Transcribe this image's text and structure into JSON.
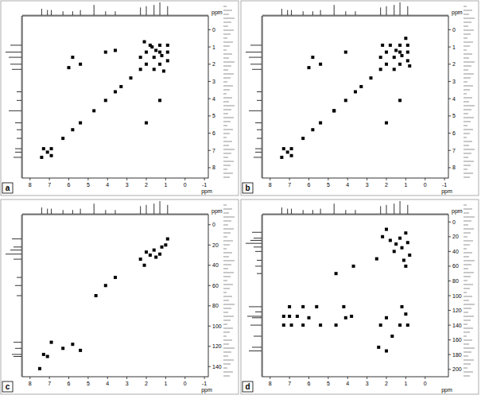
{
  "chart_data": [
    {
      "type": "scatter",
      "label": "a",
      "color": "#000000",
      "marker": "square",
      "x_label": "ppm",
      "y_label": "ppm",
      "xlim": [
        8.4,
        -1.2
      ],
      "xticks": [
        8,
        7,
        6,
        5,
        4,
        3,
        2,
        1,
        0,
        -1
      ],
      "ylim": [
        -0.8,
        8.6
      ],
      "yticks": [
        0,
        1,
        2,
        3,
        4,
        5,
        6,
        7,
        8
      ],
      "x": [
        7.4,
        7.1,
        6.9,
        6.3,
        5.8,
        5.4,
        4.7,
        4.1,
        3.6,
        3.3,
        2.8,
        2.3,
        2.0,
        1.6,
        1.3,
        0.9,
        1.2,
        1.5,
        2.0,
        1.3,
        0.9,
        1.3,
        2.3,
        1.6,
        1.8,
        0.9,
        5.4,
        2.0,
        6.0,
        5.8,
        7.3,
        6.9,
        4.1,
        1.3,
        3.6,
        1.1,
        1.7,
        2.1
      ],
      "values": [
        7.4,
        7.1,
        6.9,
        6.3,
        5.8,
        5.4,
        4.7,
        4.1,
        3.6,
        3.3,
        2.8,
        2.3,
        2.0,
        1.6,
        1.3,
        0.9,
        1.5,
        1.2,
        1.3,
        2.0,
        1.3,
        0.9,
        1.6,
        2.3,
        0.9,
        1.8,
        2.0,
        5.4,
        2.2,
        1.6,
        6.9,
        7.3,
        1.3,
        4.1,
        1.2,
        2.4,
        1.0,
        0.7
      ],
      "x_projection": {
        "positions": [
          7.4,
          7.1,
          6.9,
          6.3,
          5.8,
          5.4,
          4.7,
          4.1,
          3.6,
          2.3,
          2.0,
          1.6,
          1.3,
          0.9
        ],
        "heights": [
          0.5,
          0.4,
          0.4,
          0.3,
          0.3,
          0.4,
          0.8,
          0.3,
          0.3,
          0.6,
          0.7,
          0.8,
          1.0,
          0.7
        ]
      },
      "y_projection": {
        "positions": [
          7.4,
          7.1,
          6.9,
          6.3,
          5.8,
          5.4,
          4.7,
          4.1,
          3.6,
          2.3,
          2.0,
          1.6,
          1.3,
          0.9
        ],
        "heights": [
          0.5,
          0.4,
          0.4,
          0.3,
          0.3,
          0.4,
          0.8,
          0.3,
          0.3,
          0.6,
          0.7,
          0.8,
          1.0,
          0.7
        ]
      }
    },
    {
      "type": "scatter",
      "label": "b",
      "color": "#000000",
      "marker": "square",
      "x_label": "ppm",
      "y_label": "ppm",
      "xlim": [
        8.4,
        -1.2
      ],
      "xticks": [
        8,
        7,
        6,
        5,
        4,
        3,
        2,
        1,
        0,
        -1
      ],
      "ylim": [
        -0.8,
        8.6
      ],
      "yticks": [
        0,
        1,
        2,
        3,
        4,
        5,
        6,
        7,
        8
      ],
      "x": [
        7.4,
        7.1,
        6.9,
        6.3,
        5.8,
        5.4,
        4.7,
        4.1,
        3.6,
        3.3,
        2.8,
        2.3,
        2.0,
        1.6,
        1.3,
        0.9,
        1.2,
        1.5,
        2.0,
        1.3,
        0.9,
        1.3,
        2.3,
        1.6,
        1.8,
        0.9,
        5.4,
        2.0,
        6.0,
        5.8,
        7.3,
        6.9,
        4.1,
        1.3,
        4.7,
        2.2,
        0.8,
        1.0
      ],
      "values": [
        7.4,
        7.1,
        6.9,
        6.3,
        5.8,
        5.4,
        4.7,
        4.1,
        3.6,
        3.3,
        2.8,
        2.3,
        2.0,
        1.6,
        1.3,
        0.9,
        1.5,
        1.2,
        1.3,
        2.0,
        1.3,
        0.9,
        1.6,
        2.3,
        0.9,
        1.8,
        2.0,
        5.4,
        2.2,
        1.6,
        6.9,
        7.3,
        1.3,
        4.1,
        4.7,
        0.9,
        2.1,
        0.5
      ],
      "x_projection": {
        "positions": [
          7.4,
          7.1,
          6.9,
          6.3,
          5.8,
          5.4,
          4.7,
          4.1,
          3.6,
          2.3,
          2.0,
          1.6,
          1.3,
          0.9
        ],
        "heights": [
          0.5,
          0.4,
          0.4,
          0.3,
          0.3,
          0.4,
          0.8,
          0.3,
          0.3,
          0.6,
          0.7,
          0.8,
          1.0,
          0.7
        ]
      },
      "y_projection": {
        "positions": [
          7.4,
          7.1,
          6.9,
          6.3,
          5.8,
          5.4,
          4.7,
          4.1,
          3.6,
          2.3,
          2.0,
          1.6,
          1.3,
          0.9
        ],
        "heights": [
          0.5,
          0.4,
          0.4,
          0.3,
          0.3,
          0.4,
          0.8,
          0.3,
          0.3,
          0.6,
          0.7,
          0.8,
          1.0,
          0.7
        ]
      }
    },
    {
      "type": "scatter",
      "label": "c",
      "color": "#000000",
      "marker": "square",
      "x_label": "ppm",
      "y_label": "ppm",
      "xlim": [
        8.4,
        -1.2
      ],
      "xticks": [
        8,
        7,
        6,
        5,
        4,
        3,
        2,
        1,
        0,
        -1
      ],
      "ylim": [
        -10,
        150
      ],
      "yticks": [
        0,
        20,
        40,
        60,
        80,
        100,
        120,
        140
      ],
      "x": [
        7.5,
        7.3,
        7.1,
        6.9,
        6.3,
        5.8,
        5.4,
        4.6,
        4.1,
        3.6,
        2.3,
        2.0,
        1.6,
        1.3,
        1.2,
        0.9,
        1.5,
        2.1,
        1.0,
        1.8
      ],
      "values": [
        142,
        128,
        130,
        116,
        122,
        118,
        124,
        70,
        60,
        52,
        34,
        27,
        25,
        29,
        22,
        14,
        32,
        40,
        20,
        30
      ],
      "x_projection": {
        "positions": [
          7.4,
          7.1,
          6.9,
          6.3,
          5.8,
          5.4,
          4.7,
          4.1,
          3.6,
          2.3,
          2.0,
          1.6,
          1.3,
          0.9
        ],
        "heights": [
          0.5,
          0.4,
          0.4,
          0.3,
          0.3,
          0.4,
          0.8,
          0.3,
          0.3,
          0.6,
          0.7,
          0.8,
          1.0,
          0.7
        ]
      },
      "y_projection": {
        "positions": [
          14,
          22,
          25,
          29,
          34,
          52,
          60,
          70,
          116,
          122,
          128,
          130
        ],
        "heights": [
          0.6,
          0.5,
          0.7,
          1.0,
          0.5,
          0.3,
          0.4,
          0.3,
          0.5,
          0.4,
          0.6,
          0.5
        ]
      }
    },
    {
      "type": "scatter",
      "label": "d",
      "color": "#000000",
      "marker": "square",
      "x_label": "ppm",
      "y_label": "ppm",
      "xlim": [
        8.4,
        -1.2
      ],
      "xticks": [
        8,
        7,
        6,
        5,
        4,
        3,
        2,
        1,
        0
      ],
      "ylim": [
        -10,
        210
      ],
      "yticks": [
        0,
        20,
        40,
        60,
        80,
        100,
        120,
        140,
        160,
        180,
        200
      ],
      "x": [
        7.3,
        7.3,
        7.0,
        7.0,
        6.9,
        6.6,
        6.3,
        6.3,
        6.0,
        5.6,
        5.4,
        4.6,
        4.6,
        4.1,
        3.7,
        2.4,
        2.3,
        2.0,
        2.0,
        1.7,
        1.3,
        1.2,
        1.0,
        0.9,
        1.0,
        2.2,
        1.8,
        1.5,
        1.2,
        1.0,
        0.9,
        1.6,
        2.0,
        1.3,
        0.8,
        1.1,
        2.5,
        3.8,
        4.2
      ],
      "values": [
        128,
        140,
        115,
        128,
        140,
        128,
        115,
        140,
        130,
        115,
        140,
        140,
        70,
        130,
        60,
        170,
        140,
        130,
        175,
        155,
        140,
        115,
        125,
        140,
        60,
        20,
        25,
        30,
        35,
        15,
        28,
        40,
        10,
        22,
        45,
        52,
        50,
        128,
        115
      ],
      "x_projection": {
        "positions": [
          7.4,
          7.1,
          6.9,
          6.3,
          5.8,
          5.4,
          4.7,
          4.1,
          3.6,
          2.3,
          2.0,
          1.6,
          1.3,
          0.9
        ],
        "heights": [
          0.5,
          0.4,
          0.4,
          0.3,
          0.3,
          0.4,
          0.8,
          0.3,
          0.3,
          0.6,
          0.7,
          0.8,
          1.0,
          0.7
        ]
      },
      "y_projection": {
        "positions": [
          14,
          22,
          25,
          29,
          34,
          40,
          52,
          60,
          70,
          115,
          122,
          128,
          130,
          140,
          155,
          170,
          175
        ],
        "heights": [
          0.6,
          0.5,
          0.7,
          1.0,
          0.5,
          0.4,
          0.3,
          0.4,
          0.3,
          0.8,
          0.4,
          0.9,
          0.6,
          0.7,
          0.5,
          0.6,
          0.8
        ]
      }
    }
  ]
}
